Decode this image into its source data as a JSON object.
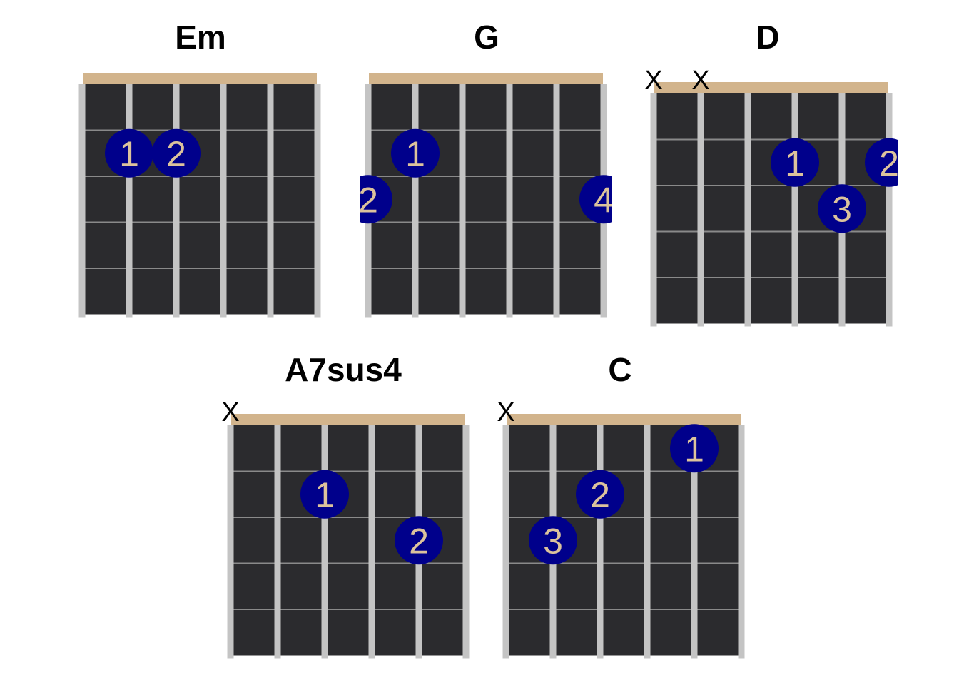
{
  "colors": {
    "background": "#ffffff",
    "fretboard": "#2b2b2e",
    "string": "#c4c4c4",
    "fret_line": "#8a8a8a",
    "nut": "#d2b48c",
    "finger_dot": "#00008b",
    "finger_number": "#dcc39c",
    "label": "#000000"
  },
  "chords": [
    {
      "name": "Em",
      "muted": [],
      "fingers": [
        {
          "string": 2,
          "fret": 2,
          "label": "1"
        },
        {
          "string": 3,
          "fret": 2,
          "label": "2"
        }
      ]
    },
    {
      "name": "G",
      "muted": [],
      "fingers": [
        {
          "string": 2,
          "fret": 2,
          "label": "1"
        },
        {
          "string": 1,
          "fret": 3,
          "label": "2"
        },
        {
          "string": 6,
          "fret": 3,
          "label": "4"
        }
      ]
    },
    {
      "name": "D",
      "muted": [
        1,
        2
      ],
      "fingers": [
        {
          "string": 4,
          "fret": 2,
          "label": "1"
        },
        {
          "string": 6,
          "fret": 2,
          "label": "2"
        },
        {
          "string": 5,
          "fret": 3,
          "label": "3"
        }
      ]
    },
    {
      "name": "A7sus4",
      "muted": [
        1
      ],
      "fingers": [
        {
          "string": 3,
          "fret": 2,
          "label": "1"
        },
        {
          "string": 5,
          "fret": 3,
          "label": "2"
        }
      ]
    },
    {
      "name": "C",
      "muted": [
        1
      ],
      "fingers": [
        {
          "string": 5,
          "fret": 1,
          "label": "1"
        },
        {
          "string": 3,
          "fret": 2,
          "label": "2"
        },
        {
          "string": 2,
          "fret": 3,
          "label": "3"
        }
      ]
    }
  ]
}
